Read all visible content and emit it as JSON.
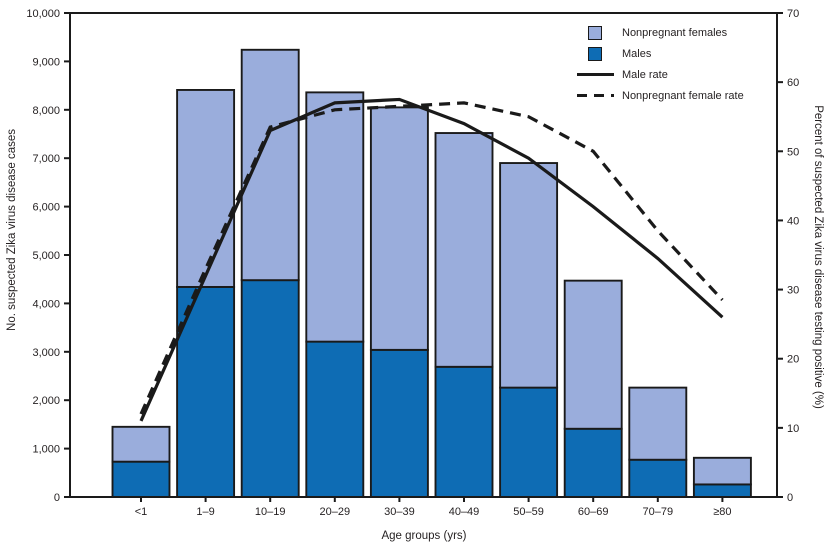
{
  "chart_data": {
    "type": "combo-stacked-bar-line",
    "categories": [
      "<1",
      "1–9",
      "10–19",
      "20–29",
      "30–39",
      "40–49",
      "50–59",
      "60–69",
      "70–79",
      "≥80"
    ],
    "bar_series": [
      {
        "name": "Males",
        "color": "#0e6cb4",
        "values": [
          730,
          4340,
          4480,
          3210,
          3040,
          2690,
          2260,
          1410,
          770,
          260
        ]
      },
      {
        "name": "Nonpregnant females",
        "color": "#9aaddc",
        "values": [
          720,
          4070,
          4760,
          5150,
          5010,
          4830,
          4640,
          3060,
          1490,
          550
        ]
      }
    ],
    "bar_totals": [
      1450,
      8410,
      9240,
      8360,
      8050,
      7520,
      6900,
      4470,
      2260,
      810
    ],
    "line_series": [
      {
        "name": "Male rate",
        "style": "solid",
        "color": "#1a1a1a",
        "values": [
          11,
          32,
          53,
          57,
          57.5,
          54,
          49,
          42,
          34.5,
          26
        ]
      },
      {
        "name": "Nonpregnant female rate",
        "style": "dashed",
        "color": "#1a1a1a",
        "values": [
          12,
          33,
          53.5,
          56,
          56.5,
          57,
          55,
          50,
          38.5,
          28.5
        ]
      }
    ],
    "xlabel": "Age groups (yrs)",
    "ylabel_left": "No. suspected Zika virus disease cases",
    "ylabel_right": "Percent of suspected Zika virus disease testing positive (%)",
    "left_axis": {
      "min": 0,
      "max": 10000,
      "tick_step": 1000,
      "tick_labels": [
        "0",
        "1,000",
        "2,000",
        "3,000",
        "4,000",
        "5,000",
        "6,000",
        "7,000",
        "8,000",
        "9,000",
        "10,000"
      ]
    },
    "right_axis": {
      "min": 0,
      "max": 70,
      "tick_step": 10,
      "tick_labels": [
        "0",
        "10",
        "20",
        "30",
        "40",
        "50",
        "60",
        "70"
      ]
    },
    "legend": {
      "position": "top-right",
      "items": [
        "Nonpregnant females",
        "Males",
        "Male rate",
        "Nonpregnant female rate"
      ]
    },
    "grid": false,
    "frame_color": "#1a1a1a",
    "text_color": "#231f20"
  }
}
